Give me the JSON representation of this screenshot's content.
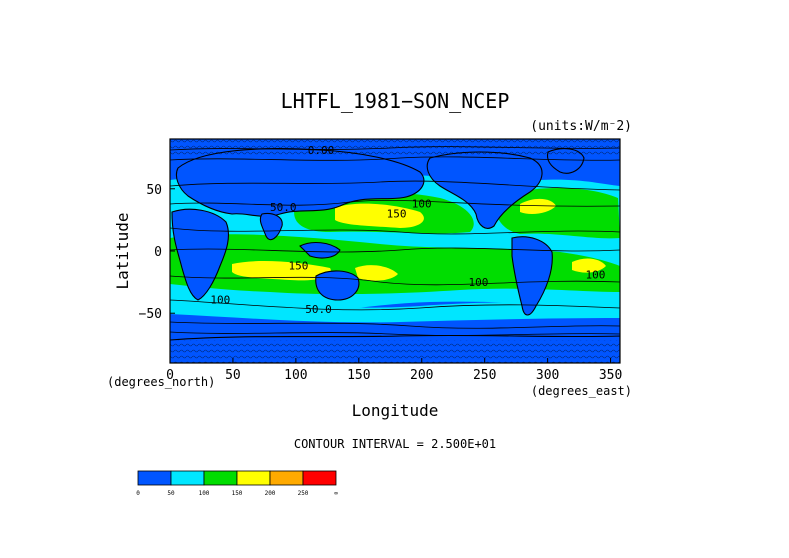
{
  "chart_data": {
    "type": "heatmap",
    "title": "LHTFL_1981−SON_NCEP",
    "units_note": "(units:W/m⁻2)",
    "xlabel": "Longitude",
    "ylabel": "Latitude",
    "x_unit_note": "(degrees_east)",
    "y_unit_note": "(degrees_north)",
    "xlim": [
      0,
      357.5
    ],
    "ylim": [
      -90,
      90
    ],
    "x_ticks": [
      0,
      50,
      100,
      150,
      200,
      250,
      300,
      350
    ],
    "y_ticks": [
      -50,
      0,
      50
    ],
    "x_tick_labels": [
      "0",
      "50",
      "100",
      "150",
      "200",
      "250",
      "300",
      "350"
    ],
    "y_tick_labels": [
      "−50",
      "0",
      "50"
    ],
    "contour_interval_text": "CONTOUR INTERVAL = 2.500E+01",
    "contour_labels": [
      {
        "text": "0.00",
        "lon": 120,
        "lat": 78
      },
      {
        "text": "50.0",
        "lon": 90,
        "lat": 32
      },
      {
        "text": "150",
        "lon": 180,
        "lat": 27
      },
      {
        "text": "100",
        "lon": 200,
        "lat": 35
      },
      {
        "text": "150",
        "lon": 102,
        "lat": -15
      },
      {
        "text": "100",
        "lon": 245,
        "lat": -28
      },
      {
        "text": "100",
        "lon": 338,
        "lat": -22
      },
      {
        "text": "100",
        "lon": 40,
        "lat": -42
      },
      {
        "text": "50.0",
        "lon": 118,
        "lat": -50
      }
    ],
    "colorbar": {
      "bins": [
        {
          "from": 0,
          "to": 50,
          "color": "#0055ff"
        },
        {
          "from": 50,
          "to": 100,
          "color": "#00e6ff"
        },
        {
          "from": 100,
          "to": 150,
          "color": "#00dd00"
        },
        {
          "from": 150,
          "to": 200,
          "color": "#ffff00"
        },
        {
          "from": 200,
          "to": 250,
          "color": "#ffaa00"
        },
        {
          "from": 250,
          "to": 300,
          "color": "#ff0000"
        }
      ],
      "tick_labels": [
        "0",
        "50",
        "100",
        "150",
        "200",
        "250",
        "∞"
      ]
    }
  }
}
